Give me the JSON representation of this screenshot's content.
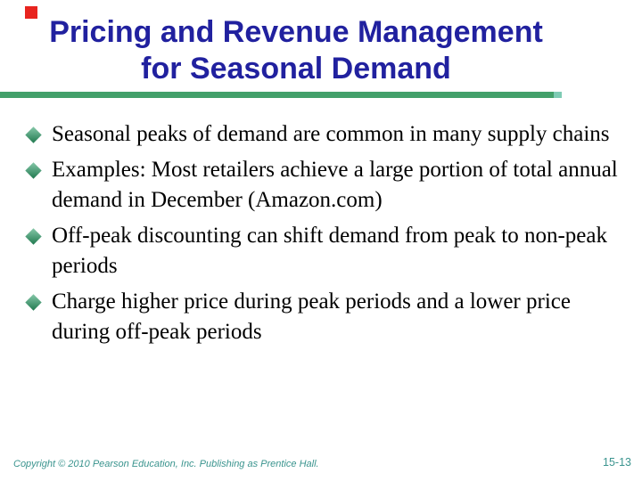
{
  "slide": {
    "title": {
      "line1": "Pricing and Revenue Management",
      "line2": "for Seasonal Demand"
    },
    "bullets": [
      "Seasonal peaks of demand are common in many supply chains",
      "Examples: Most retailers achieve a large portion of total annual demand in December (Amazon.com)",
      "Off-peak discounting can shift demand from peak to non-peak periods",
      "Charge higher price during peak periods and a lower price during off-peak periods"
    ],
    "bullet_icon": "diamond",
    "footer": {
      "copyright": "Copyright © 2010 Pearson Education, Inc. Publishing as Prentice Hall.",
      "page_number": "15-13"
    },
    "colors": {
      "accent_square": "#E8241F",
      "title_text": "#21219F",
      "bar": "#43A06A",
      "bar_tip": "#7ECBB4",
      "bullet_light": "#86C8A9",
      "bullet_dark": "#20794F",
      "body_text": "#000000",
      "footer_text": "#3A948E"
    }
  }
}
